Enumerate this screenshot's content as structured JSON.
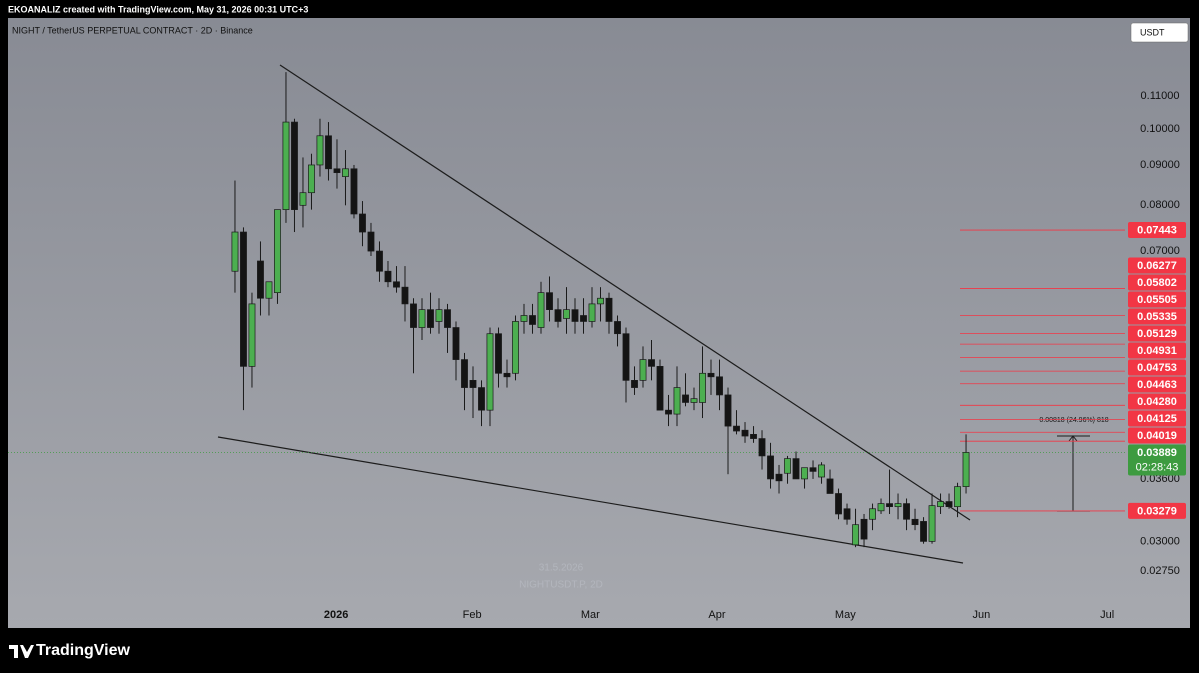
{
  "header": {
    "credit": "EKOANALIZ created with TradingView.com, May 31, 2026 00:31 UTC+3"
  },
  "footer": {
    "brand": "TradingView"
  },
  "chart_data": {
    "type": "candlestick",
    "title": "NIGHT / TetherUS PERPETUAL CONTRACT · 2D · Binance",
    "currency": "USDT",
    "watermark": [
      "31.5.2026",
      "NIGHTUSDT.P, 2D"
    ],
    "open": [
      0.066,
      0.074,
      0.05,
      0.068,
      0.061,
      0.062,
      0.079,
      0.102,
      0.08,
      0.083,
      0.09,
      0.098,
      0.089,
      0.087,
      0.089,
      0.078,
      0.074,
      0.07,
      0.066,
      0.064,
      0.063,
      0.06,
      0.056,
      0.059,
      0.057,
      0.059,
      0.056,
      0.051,
      0.048,
      0.047,
      0.044,
      0.055,
      0.049,
      0.049,
      0.057,
      0.058,
      0.056,
      0.062,
      0.059,
      0.0575,
      0.059,
      0.058,
      0.057,
      0.06,
      0.061,
      0.057,
      0.055,
      0.048,
      0.048,
      0.051,
      0.05,
      0.044,
      0.0435,
      0.046,
      0.045,
      0.045,
      0.049,
      0.0485,
      0.046,
      0.042,
      0.0415,
      0.041,
      0.0405,
      0.0385,
      0.0365,
      0.0366,
      0.0382,
      0.036,
      0.0372,
      0.0362,
      0.036,
      0.0345,
      0.033,
      0.0297,
      0.032,
      0.032,
      0.0328,
      0.0335,
      0.0332,
      0.0335,
      0.032,
      0.0318,
      0.03,
      0.0332,
      0.0337,
      0.0332,
      0.0352
    ],
    "high": [
      0.086,
      0.075,
      0.062,
      0.072,
      0.064,
      0.079,
      0.118,
      0.103,
      0.092,
      0.093,
      0.103,
      0.102,
      0.097,
      0.094,
      0.09,
      0.081,
      0.076,
      0.072,
      0.068,
      0.067,
      0.067,
      0.061,
      0.061,
      0.062,
      0.061,
      0.06,
      0.057,
      0.052,
      0.05,
      0.048,
      0.056,
      0.056,
      0.051,
      0.058,
      0.06,
      0.06,
      0.064,
      0.065,
      0.061,
      0.063,
      0.061,
      0.061,
      0.063,
      0.063,
      0.062,
      0.058,
      0.056,
      0.05,
      0.053,
      0.054,
      0.051,
      0.046,
      0.05,
      0.049,
      0.047,
      0.053,
      0.051,
      0.051,
      0.047,
      0.044,
      0.0425,
      0.042,
      0.0415,
      0.04,
      0.0375,
      0.0385,
      0.039,
      0.0372,
      0.038,
      0.0378,
      0.037,
      0.035,
      0.0335,
      0.033,
      0.0325,
      0.0335,
      0.034,
      0.037,
      0.0345,
      0.034,
      0.033,
      0.0322,
      0.0345,
      0.0345,
      0.0345,
      0.0356,
      0.041
    ],
    "low": [
      0.062,
      0.044,
      0.047,
      0.058,
      0.058,
      0.06,
      0.076,
      0.074,
      0.075,
      0.079,
      0.087,
      0.086,
      0.084,
      0.08,
      0.077,
      0.071,
      0.069,
      0.064,
      0.063,
      0.062,
      0.057,
      0.049,
      0.054,
      0.055,
      0.055,
      0.052,
      0.048,
      0.044,
      0.043,
      0.042,
      0.042,
      0.047,
      0.047,
      0.048,
      0.055,
      0.055,
      0.055,
      0.057,
      0.056,
      0.055,
      0.055,
      0.055,
      0.056,
      0.057,
      0.055,
      0.053,
      0.045,
      0.046,
      0.047,
      0.048,
      0.044,
      0.042,
      0.042,
      0.0445,
      0.044,
      0.043,
      0.046,
      0.044,
      0.0365,
      0.041,
      0.04,
      0.04,
      0.037,
      0.035,
      0.0345,
      0.0355,
      0.036,
      0.035,
      0.036,
      0.0355,
      0.0345,
      0.032,
      0.0315,
      0.0295,
      0.0295,
      0.031,
      0.0325,
      0.0325,
      0.032,
      0.031,
      0.031,
      0.0298,
      0.0298,
      0.0325,
      0.033,
      0.0322,
      0.0345
    ],
    "close": [
      0.074,
      0.05,
      0.06,
      0.061,
      0.064,
      0.079,
      0.102,
      0.079,
      0.083,
      0.09,
      0.098,
      0.089,
      0.088,
      0.089,
      0.078,
      0.074,
      0.07,
      0.066,
      0.064,
      0.063,
      0.06,
      0.056,
      0.059,
      0.056,
      0.059,
      0.056,
      0.051,
      0.047,
      0.047,
      0.044,
      0.055,
      0.049,
      0.0485,
      0.057,
      0.058,
      0.0565,
      0.062,
      0.059,
      0.057,
      0.059,
      0.057,
      0.057,
      0.06,
      0.061,
      0.057,
      0.055,
      0.048,
      0.047,
      0.051,
      0.05,
      0.044,
      0.0435,
      0.047,
      0.045,
      0.0455,
      0.049,
      0.0485,
      0.046,
      0.042,
      0.0414,
      0.0408,
      0.0405,
      0.0385,
      0.036,
      0.0358,
      0.0382,
      0.036,
      0.0372,
      0.0368,
      0.0375,
      0.0345,
      0.0325,
      0.032,
      0.0315,
      0.0302,
      0.033,
      0.0335,
      0.0332,
      0.0335,
      0.032,
      0.0315,
      0.03,
      0.0333,
      0.0337,
      0.0332,
      0.0352,
      0.03889
    ],
    "up_color": "#4caf50",
    "down_color": "#141414",
    "wick_color": "#1a1a1a",
    "log_scale": true,
    "ylim": [
      0.0233,
      0.1382
    ],
    "yticks": [
      {
        "value": 0.11,
        "label": "0.11000"
      },
      {
        "value": 0.1,
        "label": "0.10000"
      },
      {
        "value": 0.09,
        "label": "0.09000"
      },
      {
        "value": 0.08,
        "label": "0.08000"
      },
      {
        "value": 0.07,
        "label": "0.07000"
      },
      {
        "value": 0.036,
        "label": "0.03600"
      },
      {
        "value": 0.03,
        "label": "0.03000"
      },
      {
        "value": 0.0275,
        "label": "0.02750"
      }
    ],
    "xlim": [
      -26.7,
      104.7
    ],
    "xticks": [
      {
        "value": 11.9,
        "label": "2026"
      },
      {
        "value": 27.9,
        "label": "Feb"
      },
      {
        "value": 41.8,
        "label": "Mar"
      },
      {
        "value": 56.7,
        "label": "Apr"
      },
      {
        "value": 71.8,
        "label": "May"
      },
      {
        "value": 87.8,
        "label": "Jun"
      },
      {
        "value": 102.6,
        "label": "Jul"
      }
    ],
    "grid": false,
    "price_levels": [
      0.07443,
      0.06277,
      0.05802,
      0.05505,
      0.05335,
      0.05129,
      0.04931,
      0.04753,
      0.04463,
      {
        "value": 0.0428,
        "label": "0.04280"
      },
      0.04125,
      0.04019,
      0.03279
    ],
    "level_color": "#f23645",
    "last_price": 0.03889,
    "countdown": "02:28:43",
    "last_price_color": "#3d9b40",
    "measure_label": "0.00818 (24.96%) 818"
  }
}
